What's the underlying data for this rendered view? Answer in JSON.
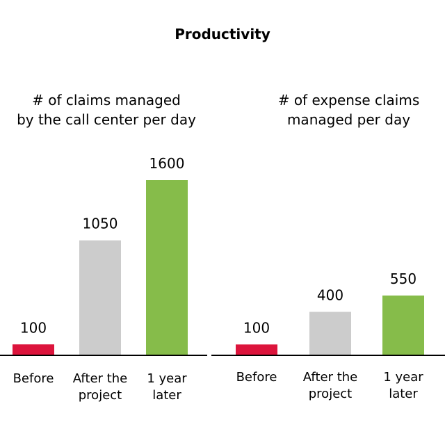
{
  "title": "Productivity",
  "colors": {
    "before": "#dc143c",
    "after": "#cccccc",
    "later": "#86bc4a",
    "axis": "#000000"
  },
  "chart_data": [
    {
      "type": "bar",
      "title": "# of claims managed\nby the call center per day",
      "categories": [
        "Before",
        "After the\nproject",
        "1 year\nlater"
      ],
      "values": [
        100,
        1050,
        1600
      ],
      "data_labels": [
        "100",
        "1050",
        "1600"
      ],
      "ylim": [
        0,
        1600
      ],
      "grid": false,
      "legend": "none"
    },
    {
      "type": "bar",
      "title": "# of expense claims\nmanaged per day",
      "categories": [
        "Before",
        "After the\nproject",
        "1 year\nlater"
      ],
      "values": [
        100,
        400,
        550
      ],
      "data_labels": [
        "100",
        "400",
        "550"
      ],
      "ylim": [
        0,
        550
      ],
      "grid": false,
      "legend": "none"
    }
  ]
}
